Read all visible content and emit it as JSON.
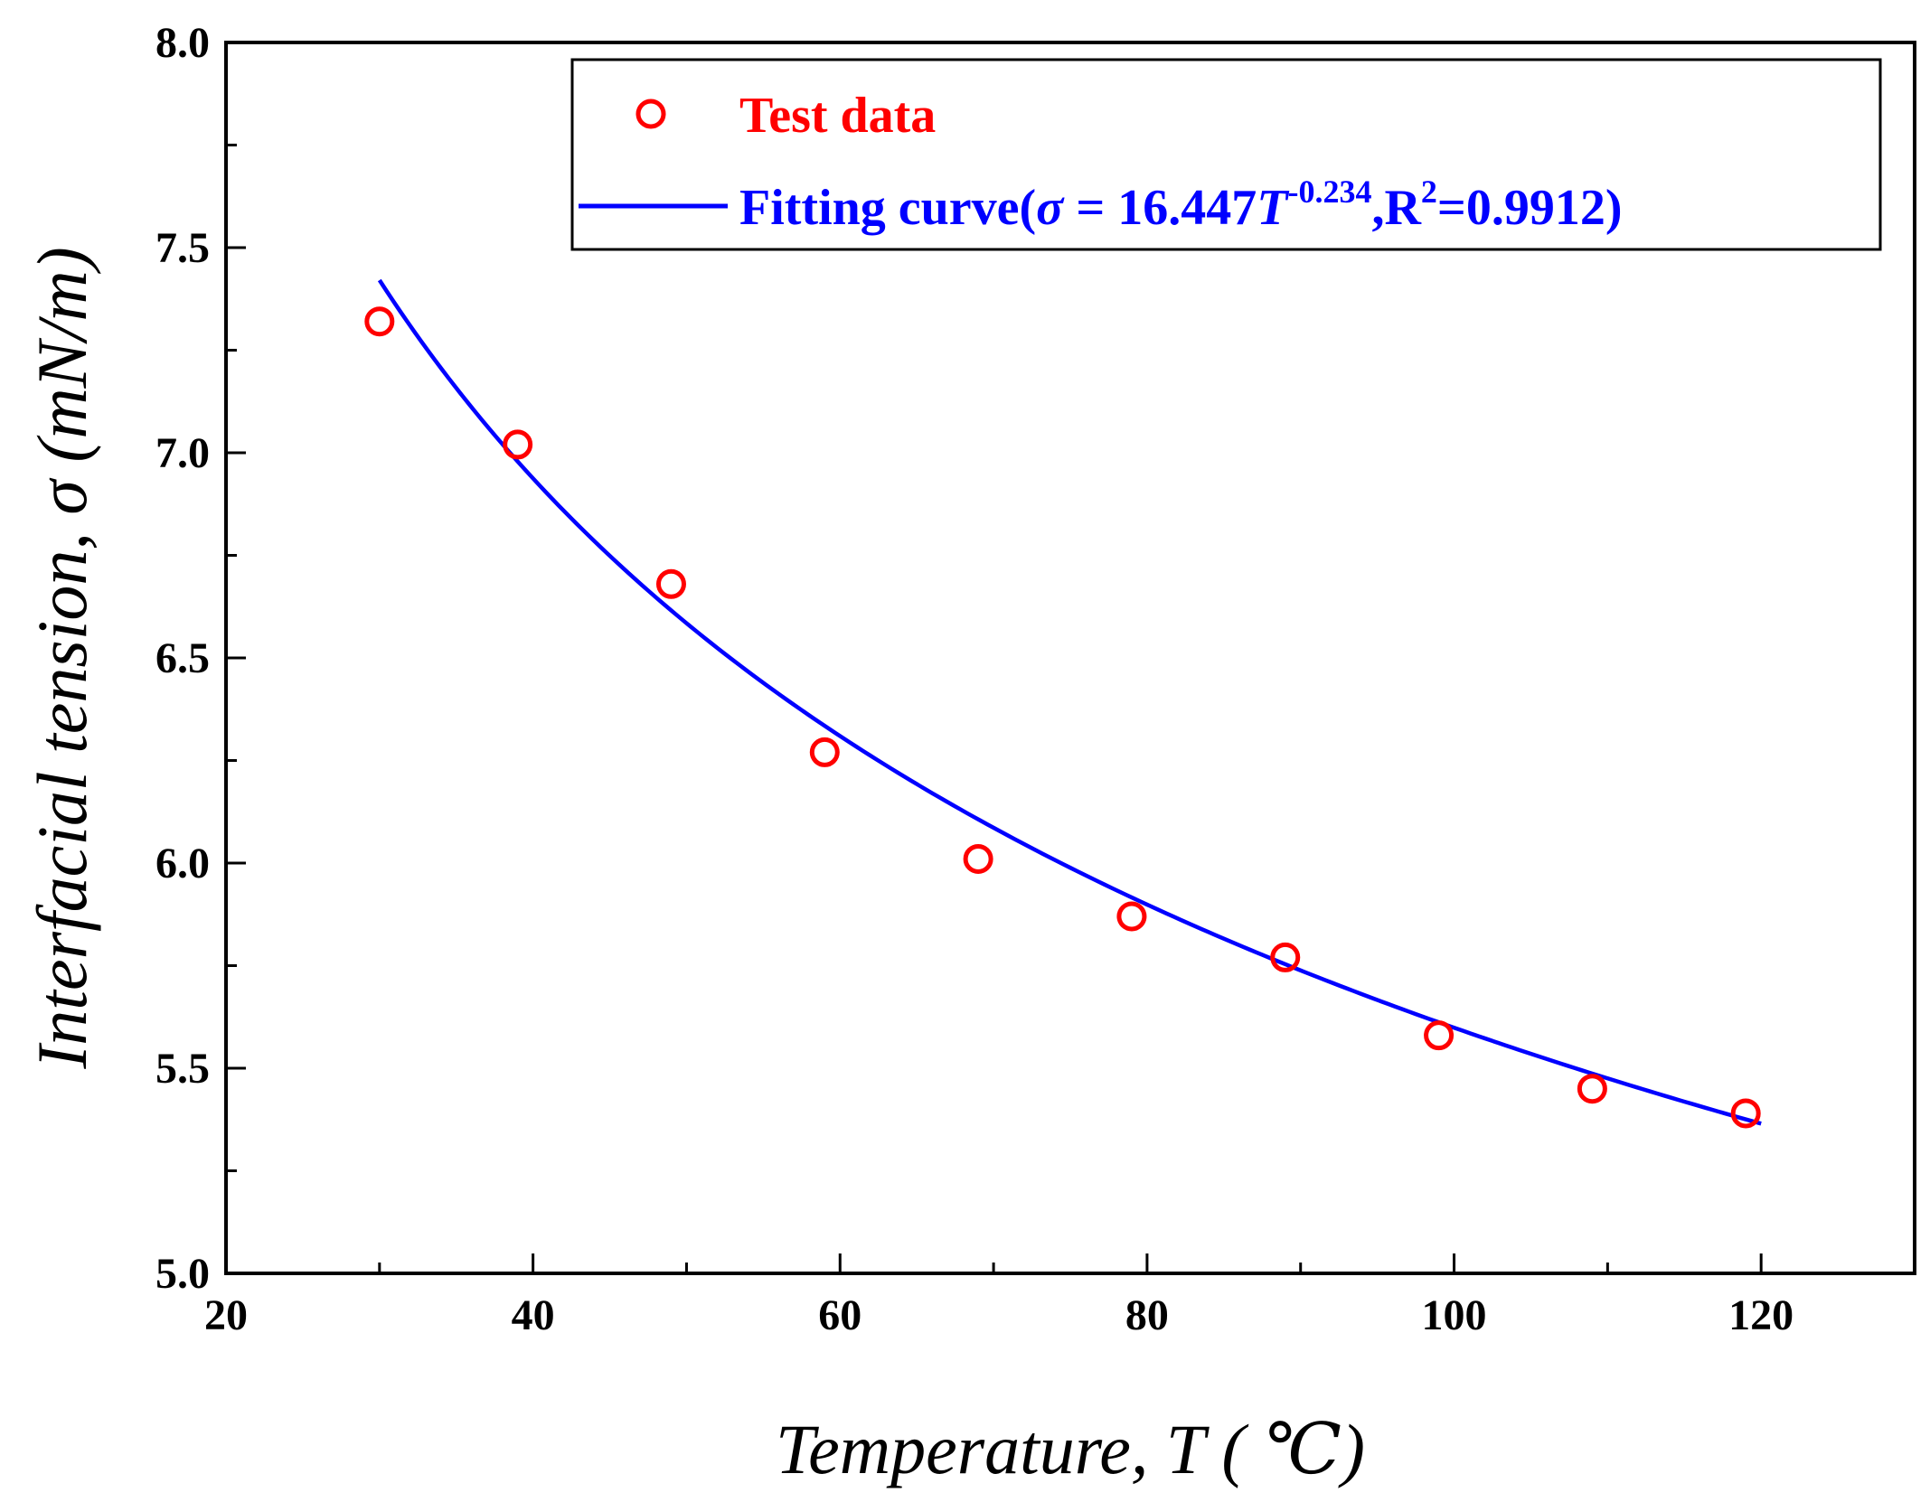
{
  "chart_data": {
    "type": "scatter",
    "title": "",
    "xlabel": "Temperature, T ( ℃)",
    "ylabel": "Interfacial tension, σ (mN/m)",
    "xlim": [
      20,
      130
    ],
    "ylim": [
      5.0,
      8.0
    ],
    "xticks": [
      20,
      40,
      60,
      80,
      100,
      120
    ],
    "xtick_labels": [
      "20",
      "40",
      "60",
      "80",
      "100",
      "120"
    ],
    "yticks": [
      5.0,
      5.5,
      6.0,
      6.5,
      7.0,
      7.5,
      8.0
    ],
    "ytick_labels": [
      "5.0",
      "5.5",
      "6.0",
      "6.5",
      "7.0",
      "7.5",
      "8.0"
    ],
    "grid": false,
    "legend_position": "top-right",
    "series": [
      {
        "name": "Test data",
        "kind": "markers",
        "marker": "open-circle",
        "color": "#ff0000",
        "x": [
          30,
          39,
          49,
          59,
          69,
          79,
          89,
          99,
          109,
          119
        ],
        "y": [
          7.32,
          7.02,
          6.68,
          6.27,
          6.01,
          5.87,
          5.77,
          5.58,
          5.45,
          5.39
        ]
      },
      {
        "name": "Fitting curve",
        "kind": "line",
        "color": "#0000ff",
        "equation": {
          "a": 16.447,
          "b": -0.234
        },
        "x_range": [
          30,
          120
        ]
      }
    ],
    "legend": {
      "test_label": "Test data",
      "fit_prefix": "Fitting curve(",
      "fit_sigma": "σ",
      "fit_eq": " = 16.447",
      "fit_T": "T",
      "fit_exp": "-0.234",
      "fit_r": ",R",
      "fit_r_sup": "2",
      "fit_r_val": "=0.9912)"
    }
  }
}
